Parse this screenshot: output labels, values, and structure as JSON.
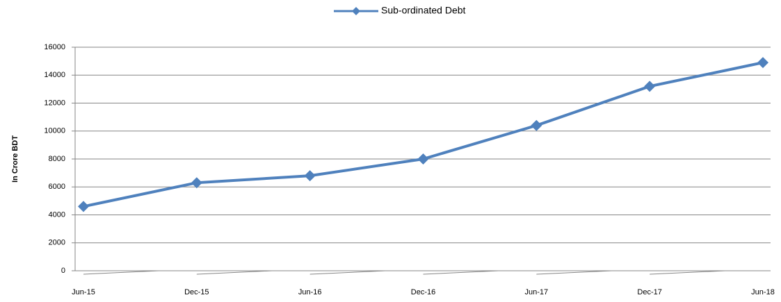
{
  "chart_data": {
    "type": "line",
    "y_label": "In Crore BDT",
    "categories": [
      "Jun-15",
      "Dec-15",
      "Jun-16",
      "Dec-16",
      "Jun-17",
      "Dec-17",
      "Jun-18"
    ],
    "series": [
      {
        "name": "Sub-ordinated Debt",
        "color": "#4f81bd",
        "values": [
          4600,
          6300,
          6800,
          8000,
          10400,
          13200,
          14900
        ]
      }
    ],
    "ylim": [
      0,
      16000
    ],
    "yticks": [
      0,
      2000,
      4000,
      6000,
      8000,
      10000,
      12000,
      14000,
      16000
    ],
    "grid": true,
    "legend": "top"
  }
}
